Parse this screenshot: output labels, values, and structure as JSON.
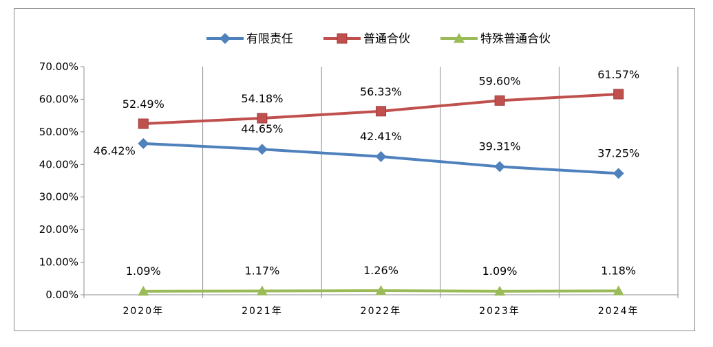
{
  "chart_data": {
    "type": "line",
    "categories": [
      "2020年",
      "2021年",
      "2022年",
      "2023年",
      "2024年"
    ],
    "ylim": [
      0,
      70
    ],
    "y_ticks": [
      0,
      10,
      20,
      30,
      40,
      50,
      60,
      70
    ],
    "y_tick_labels": [
      "0.00%",
      "10.00%",
      "20.00%",
      "30.00%",
      "40.00%",
      "50.00%",
      "60.00%",
      "70.00%"
    ],
    "grid": "vertical",
    "legend_position": "top",
    "series": [
      {
        "name": "有限责任",
        "color": "#4f81bd",
        "marker": "diamond",
        "values": [
          46.42,
          44.65,
          42.41,
          39.31,
          37.25
        ],
        "labels": [
          "46.42%",
          "44.65%",
          "42.41%",
          "39.31%",
          "37.25%"
        ]
      },
      {
        "name": "普通合伙",
        "color": "#c0504d",
        "marker": "square",
        "values": [
          52.49,
          54.18,
          56.33,
          59.6,
          61.57
        ],
        "labels": [
          "52.49%",
          "54.18%",
          "56.33%",
          "59.60%",
          "61.57%"
        ]
      },
      {
        "name": "特殊普通合伙",
        "color": "#9bbb59",
        "marker": "triangle",
        "values": [
          1.09,
          1.17,
          1.26,
          1.09,
          1.18
        ],
        "labels": [
          "1.09%",
          "1.17%",
          "1.26%",
          "1.09%",
          "1.18%"
        ]
      }
    ]
  }
}
